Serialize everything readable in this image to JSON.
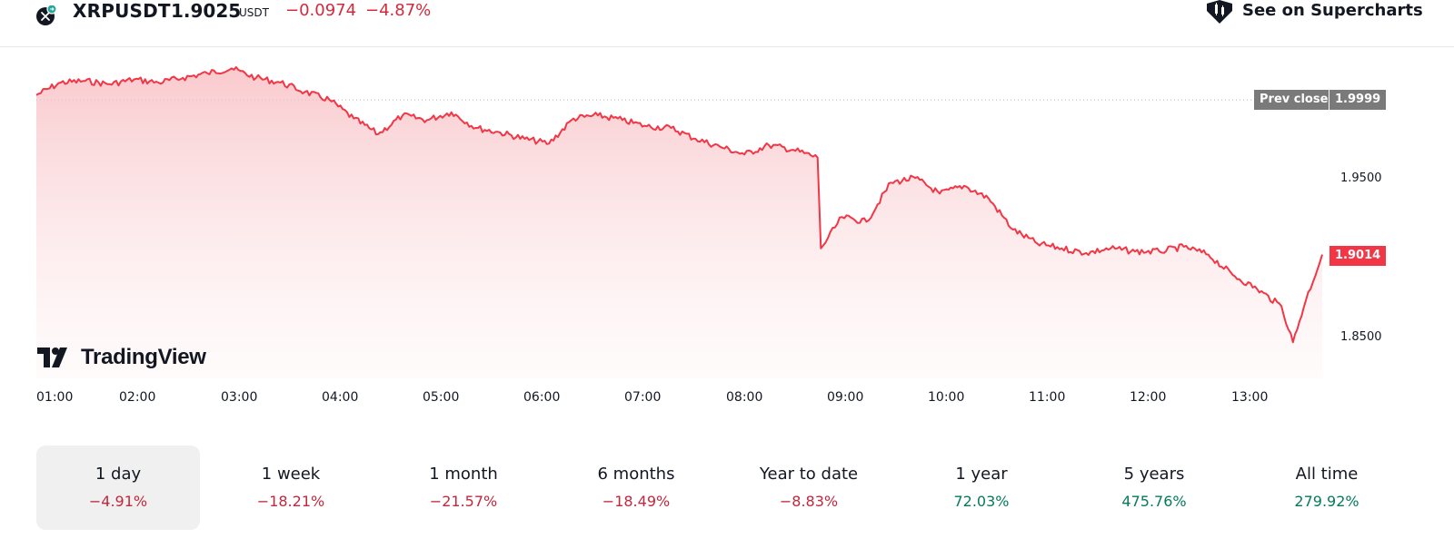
{
  "header": {
    "symbol": "XRPUSDT",
    "price": "1.9025",
    "currency": "USDT",
    "change_abs": "−0.0974",
    "change_pct": "−4.87%",
    "supercharts_label": "See on Supercharts"
  },
  "chart": {
    "prev_close_label": "Prev close",
    "prev_close_value": "1.9999",
    "current_value": "1.9014",
    "price_ticks": [
      "1.9500",
      "1.8500"
    ],
    "time_ticks": [
      "01:00",
      "02:00",
      "03:00",
      "04:00",
      "05:00",
      "06:00",
      "07:00",
      "08:00",
      "09:00",
      "10:00",
      "11:00",
      "12:00",
      "13:00"
    ],
    "logo_text": "TradingView",
    "line_color": "#f23645"
  },
  "chart_data": {
    "type": "area",
    "x": [
      "00:30",
      "00:45",
      "01:00",
      "01:15",
      "01:30",
      "01:45",
      "02:00",
      "02:15",
      "02:30",
      "02:45",
      "03:00",
      "03:15",
      "03:30",
      "03:45",
      "04:00",
      "04:15",
      "04:30",
      "04:45",
      "05:00",
      "05:15",
      "05:30",
      "05:45",
      "06:00",
      "06:15",
      "06:30",
      "06:45",
      "07:00",
      "07:15",
      "07:30",
      "07:45",
      "08:00",
      "08:15",
      "08:30",
      "08:32",
      "08:45",
      "09:00",
      "09:15",
      "09:30",
      "09:45",
      "10:00",
      "10:15",
      "10:30",
      "10:45",
      "11:00",
      "11:15",
      "11:30",
      "11:45",
      "12:00",
      "12:15",
      "12:30",
      "12:45",
      "13:00",
      "13:15",
      "13:22",
      "13:30",
      "13:40"
    ],
    "values": [
      2.003,
      2.011,
      2.012,
      2.01,
      2.013,
      2.011,
      2.014,
      2.017,
      2.02,
      2.014,
      2.011,
      2.005,
      2.0,
      1.988,
      1.978,
      1.99,
      1.987,
      1.992,
      1.982,
      1.979,
      1.975,
      1.972,
      1.988,
      1.99,
      1.987,
      1.983,
      1.982,
      1.975,
      1.97,
      1.965,
      1.971,
      1.968,
      1.963,
      1.905,
      1.925,
      1.922,
      1.947,
      1.95,
      1.94,
      1.945,
      1.937,
      1.917,
      1.908,
      1.905,
      1.902,
      1.905,
      1.903,
      1.903,
      1.906,
      1.901,
      1.888,
      1.879,
      1.868,
      1.845,
      1.872,
      1.901
    ],
    "ylim": [
      1.8219,
      2.0336
    ],
    "prev_close": 1.9999,
    "last": 1.9014,
    "grid": false
  },
  "periods": [
    {
      "label": "1 day",
      "value": "−4.91%",
      "sign": "neg",
      "active": true
    },
    {
      "label": "1 week",
      "value": "−18.21%",
      "sign": "neg",
      "active": false
    },
    {
      "label": "1 month",
      "value": "−21.57%",
      "sign": "neg",
      "active": false
    },
    {
      "label": "6 months",
      "value": "−18.49%",
      "sign": "neg",
      "active": false
    },
    {
      "label": "Year to date",
      "value": "−8.83%",
      "sign": "neg",
      "active": false
    },
    {
      "label": "1 year",
      "value": "72.03%",
      "sign": "pos",
      "active": false
    },
    {
      "label": "5 years",
      "value": "475.76%",
      "sign": "pos",
      "active": false
    },
    {
      "label": "All time",
      "value": "279.92%",
      "sign": "pos",
      "active": false
    }
  ]
}
